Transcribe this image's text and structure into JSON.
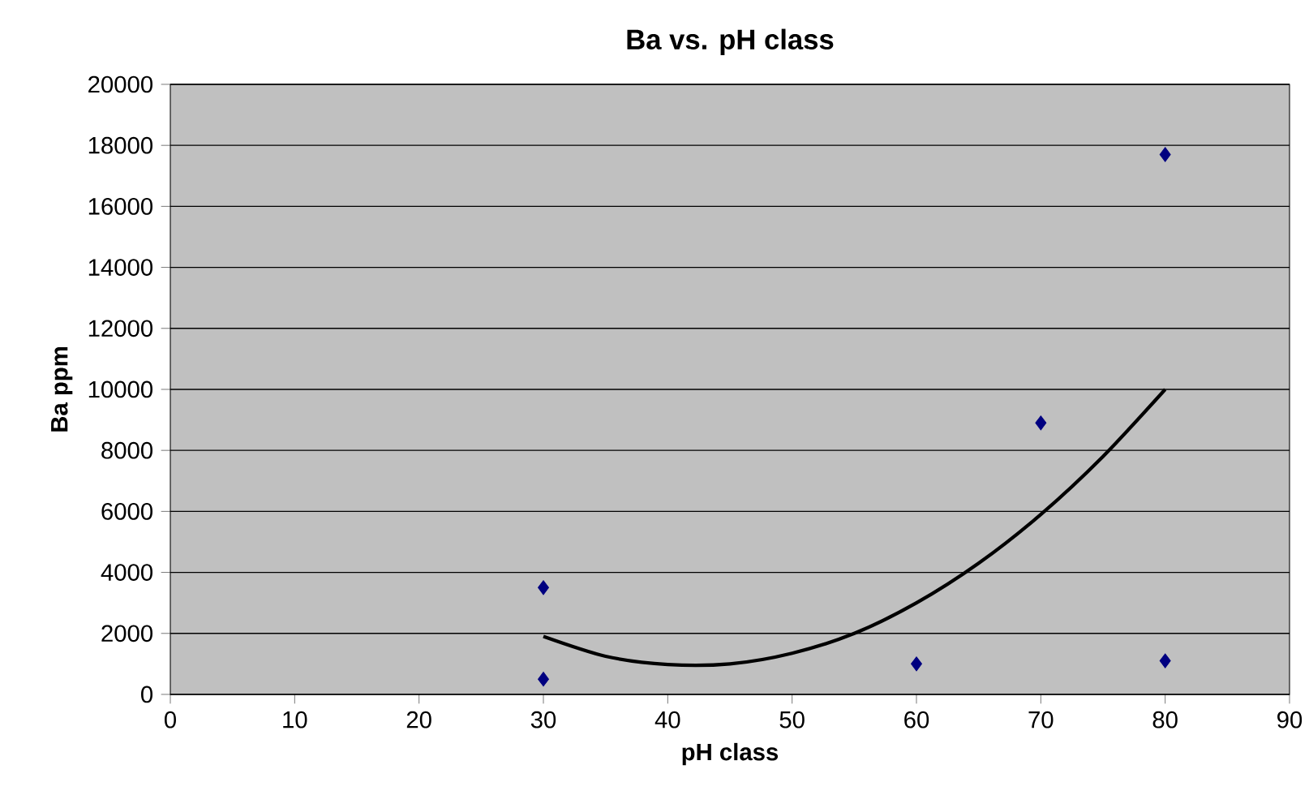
{
  "chart_data": {
    "type": "scatter",
    "title": "Ba vs. pH class",
    "xlabel": "pH class",
    "ylabel": "Ba ppm",
    "xlim": [
      0,
      90
    ],
    "xticks": [
      0,
      10,
      20,
      30,
      40,
      50,
      60,
      70,
      80,
      90
    ],
    "ylim": [
      0,
      20000
    ],
    "yticks": [
      0,
      2000,
      4000,
      6000,
      8000,
      10000,
      12000,
      14000,
      16000,
      18000,
      20000
    ],
    "grid": "y",
    "series": [
      {
        "color": "#000080",
        "marker": "diamond",
        "x": [
          30,
          30,
          60,
          70,
          80,
          80
        ],
        "values": [
          3500,
          500,
          1000,
          8900,
          17700,
          1100
        ]
      },
      {
        "type": "line",
        "color": "#000000",
        "marker": "none",
        "line_style": "solid",
        "x": [
          30,
          35,
          40,
          45,
          50,
          55,
          60,
          65,
          70,
          75,
          80
        ],
        "values": [
          1900,
          1250,
          980,
          1000,
          1350,
          2000,
          3000,
          4300,
          5900,
          7800,
          10000
        ]
      }
    ]
  }
}
